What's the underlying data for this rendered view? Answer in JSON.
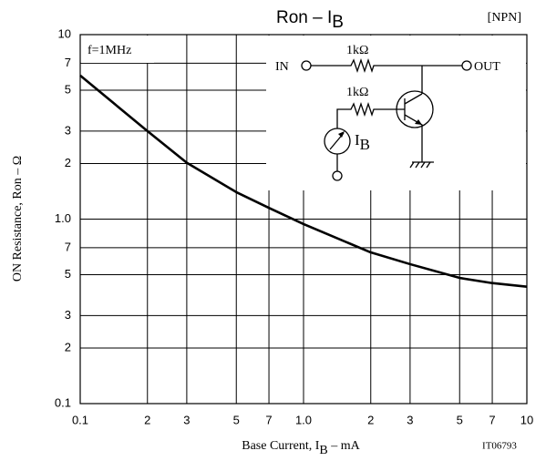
{
  "chart_data": {
    "type": "line",
    "title": "Ron – I",
    "title_subscript": "B",
    "corner_label": "[NPN]",
    "xlabel": "Base Current, I",
    "xlabel_subscript": "B",
    "xlabel_unit": " – mA",
    "ylabel": "ON Resistance, Ron – Ω",
    "condition": "f=1MHz",
    "figure_code": "IT06793",
    "circuit": {
      "input": "IN",
      "output": "OUT",
      "r1": "1kΩ",
      "r2": "1kΩ",
      "meter": "I",
      "meter_subscript": "B"
    },
    "log_x": true,
    "log_y": true,
    "grid": true,
    "color": "#000000",
    "x": [
      0.1,
      0.2,
      0.3,
      0.5,
      0.7,
      1,
      2,
      3,
      5,
      7,
      10
    ],
    "series": [
      {
        "name": "Ron",
        "color": "#000000",
        "values": [
          6,
          3,
          2.02,
          1.4,
          1.15,
          0.94,
          0.66,
          0.57,
          0.48,
          0.45,
          0.43
        ]
      }
    ],
    "xlim": [
      0.1,
      10
    ],
    "xticks": [
      0.1,
      {
        "value": 0.2,
        "label": "2"
      },
      {
        "value": 0.3,
        "label": "3"
      },
      {
        "value": 0.5,
        "label": "5"
      },
      {
        "value": 0.7,
        "label": "7"
      },
      {
        "value": 1,
        "label": "1.0"
      },
      2,
      3,
      5,
      7,
      10
    ],
    "ylim": [
      0.1,
      10
    ],
    "yticks": [
      0.1,
      {
        "value": 0.2,
        "label": "2"
      },
      {
        "value": 0.3,
        "label": "3"
      },
      {
        "value": 0.5,
        "label": "5"
      },
      {
        "value": 0.7,
        "label": "7"
      },
      {
        "value": 1,
        "label": "1.0"
      },
      2,
      3,
      5,
      7,
      10
    ]
  }
}
